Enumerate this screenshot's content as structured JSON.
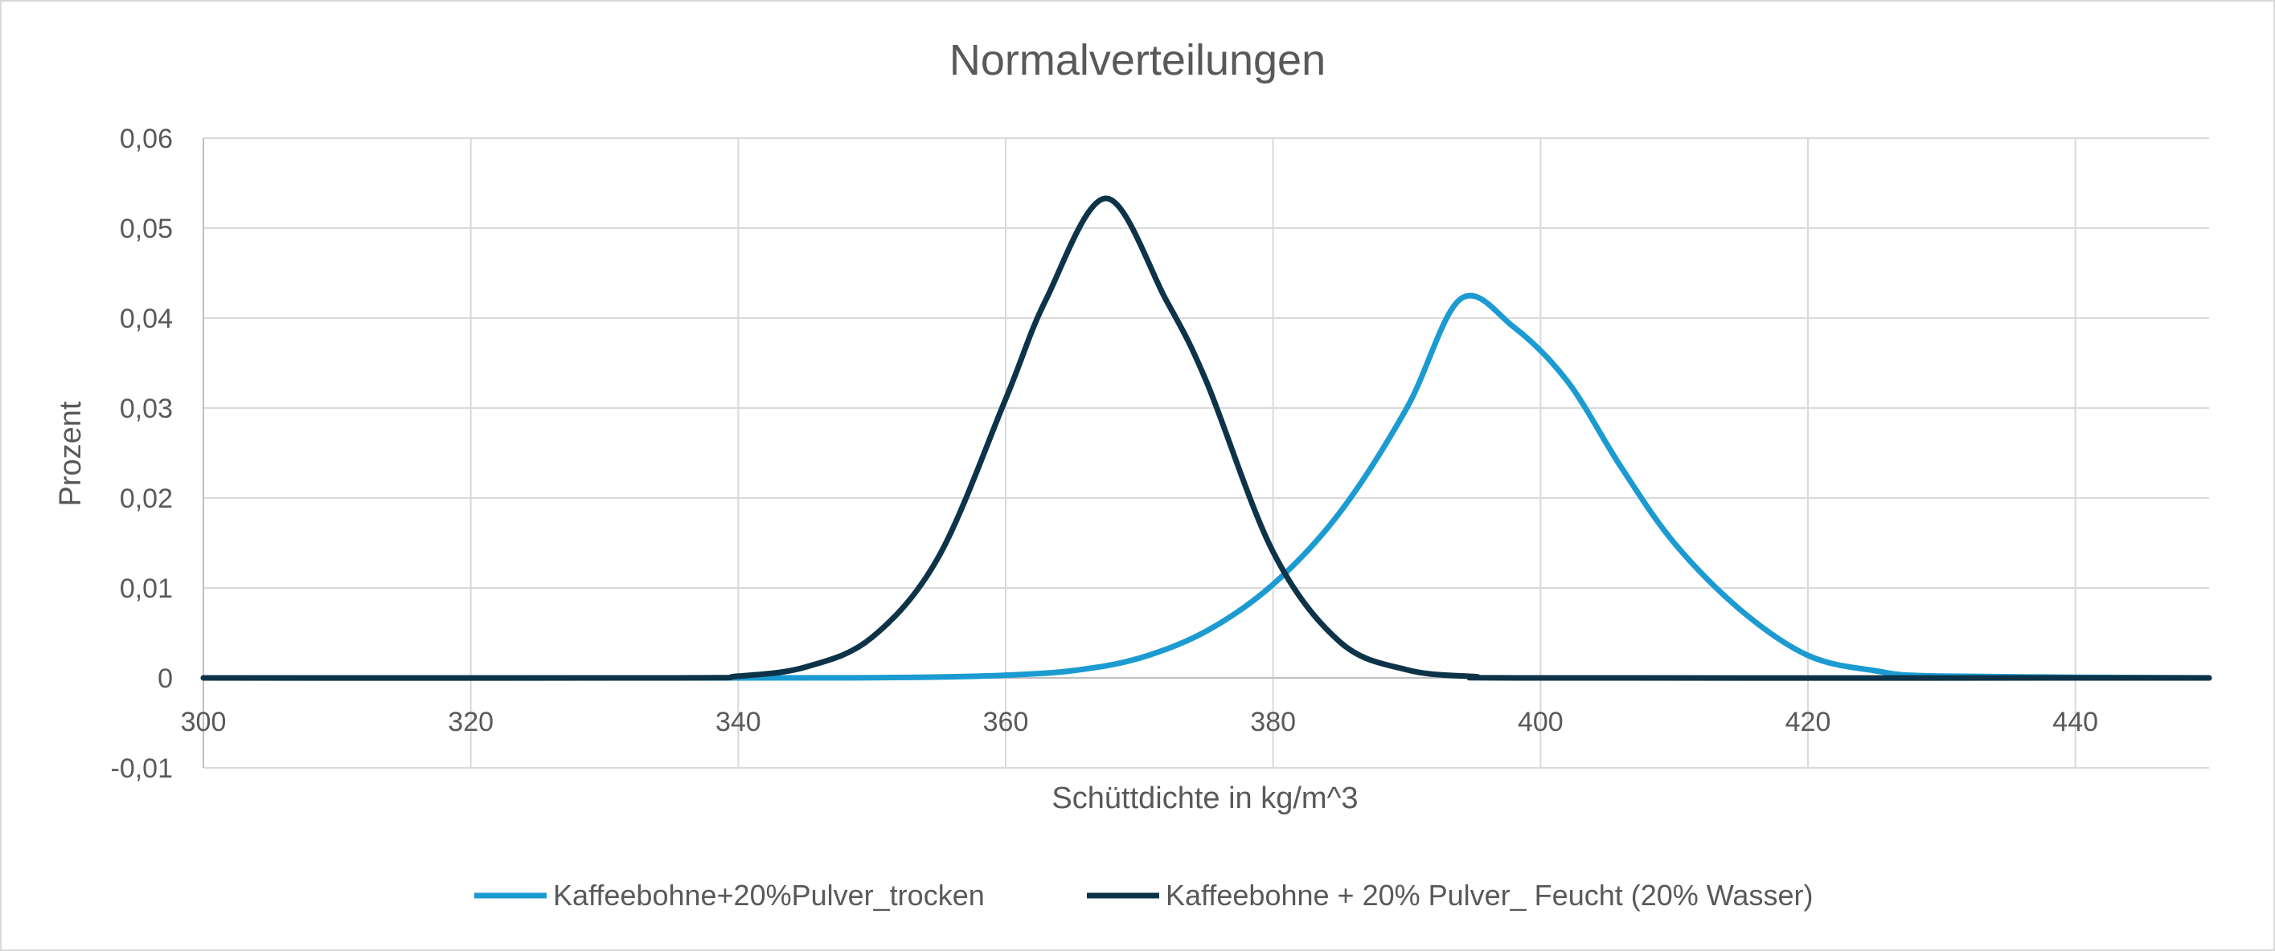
{
  "chart_data": {
    "type": "line",
    "title": "Normalverteilungen",
    "xlabel": "Schüttdichte in kg/m^3",
    "ylabel": "Prozent",
    "xlim": [
      300,
      450
    ],
    "ylim": [
      -0.01,
      0.06
    ],
    "x_ticks": [
      300,
      320,
      340,
      360,
      380,
      400,
      420,
      440
    ],
    "x_tick_labels": [
      "300",
      "320",
      "340",
      "360",
      "380",
      "400",
      "420",
      "440"
    ],
    "y_ticks": [
      -0.01,
      0,
      0.01,
      0.02,
      0.03,
      0.04,
      0.05,
      0.06
    ],
    "y_tick_labels": [
      "-0,01",
      "0",
      "0,01",
      "0,02",
      "0,03",
      "0,04",
      "0,05",
      "0,06"
    ],
    "grid": true,
    "legend_position": "bottom",
    "series": [
      {
        "name": "Kaffeebohne+20%Pulver_trocken",
        "color": "#1b9bd1",
        "x": [
          300,
          340,
          350,
          355,
          360,
          365,
          370,
          375,
          380,
          385,
          390,
          394,
          398,
          402,
          406,
          410,
          415,
          420,
          425,
          430,
          450
        ],
        "y": [
          0,
          0,
          3e-05,
          0.0001,
          0.0003,
          0.0008,
          0.0022,
          0.0052,
          0.0104,
          0.0184,
          0.03,
          0.0421,
          0.039,
          0.033,
          0.0235,
          0.015,
          0.0075,
          0.0025,
          0.0008,
          0.0002,
          0
        ]
      },
      {
        "name": "Kaffeebohne + 20% Pulver_ Feucht (20% Wasser)",
        "color": "#0d3349",
        "x": [
          300,
          335,
          340,
          345,
          350,
          355,
          360,
          363,
          367.5,
          372,
          375,
          380,
          385,
          390,
          395,
          400,
          450
        ],
        "y": [
          0,
          0,
          0.0002,
          0.0012,
          0.0045,
          0.0135,
          0.031,
          0.042,
          0.0533,
          0.042,
          0.033,
          0.014,
          0.004,
          0.0009,
          0.00015,
          0,
          0
        ]
      }
    ]
  }
}
